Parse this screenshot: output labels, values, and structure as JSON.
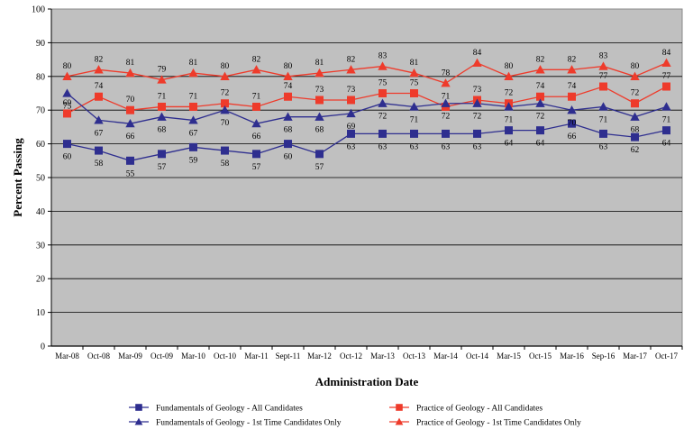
{
  "chart_data": {
    "type": "line",
    "xlabel": "Administration Date",
    "ylabel": "Percent Passing",
    "ylim": [
      0,
      100
    ],
    "yticks": [
      0,
      10,
      20,
      30,
      40,
      50,
      60,
      70,
      80,
      90,
      100
    ],
    "grid": true,
    "legend_position": "bottom",
    "categories": [
      "Mar-08",
      "Oct-08",
      "Mar-09",
      "Oct-09",
      "Mar-10",
      "Oct-10",
      "Mar-11",
      "Sept-11",
      "Mar-12",
      "Oct-12",
      "Mar-13",
      "Oct-13",
      "Mar-14",
      "Oct-14",
      "Mar-15",
      "Oct-15",
      "Mar-16",
      "Sep-16",
      "Mar-17",
      "Oct-17"
    ],
    "series": [
      {
        "name": "Fundamentals of Geology - All Candidates",
        "color": "#2e2e8f",
        "marker": "square",
        "label_pos": "below",
        "values": [
          60,
          58,
          55,
          57,
          59,
          58,
          57,
          60,
          57,
          63,
          63,
          63,
          63,
          63,
          64,
          64,
          66,
          63,
          62,
          64
        ]
      },
      {
        "name": "Practice of Geology - All Candidates",
        "color": "#ee3b2b",
        "marker": "square",
        "label_pos": "above",
        "values": [
          69,
          74,
          70,
          71,
          71,
          72,
          71,
          74,
          73,
          73,
          75,
          75,
          71,
          73,
          72,
          74,
          74,
          77,
          72,
          77
        ]
      },
      {
        "name": "Fundamentals of Geology - 1st Time Candidates Only",
        "color": "#2e2e8f",
        "marker": "triangle",
        "label_pos": "below",
        "values": [
          75,
          67,
          66,
          68,
          67,
          70,
          66,
          68,
          68,
          69,
          72,
          71,
          72,
          72,
          71,
          72,
          70,
          71,
          68,
          71
        ]
      },
      {
        "name": "Practice of Geology - 1st Time Candidates Only",
        "color": "#ee3b2b",
        "marker": "triangle",
        "label_pos": "above",
        "values": [
          80,
          82,
          81,
          79,
          81,
          80,
          82,
          80,
          81,
          82,
          83,
          81,
          78,
          84,
          80,
          82,
          82,
          83,
          80,
          84
        ]
      }
    ]
  },
  "colors": {
    "plot_background": "#c0c0c0",
    "grid": "#000000"
  }
}
